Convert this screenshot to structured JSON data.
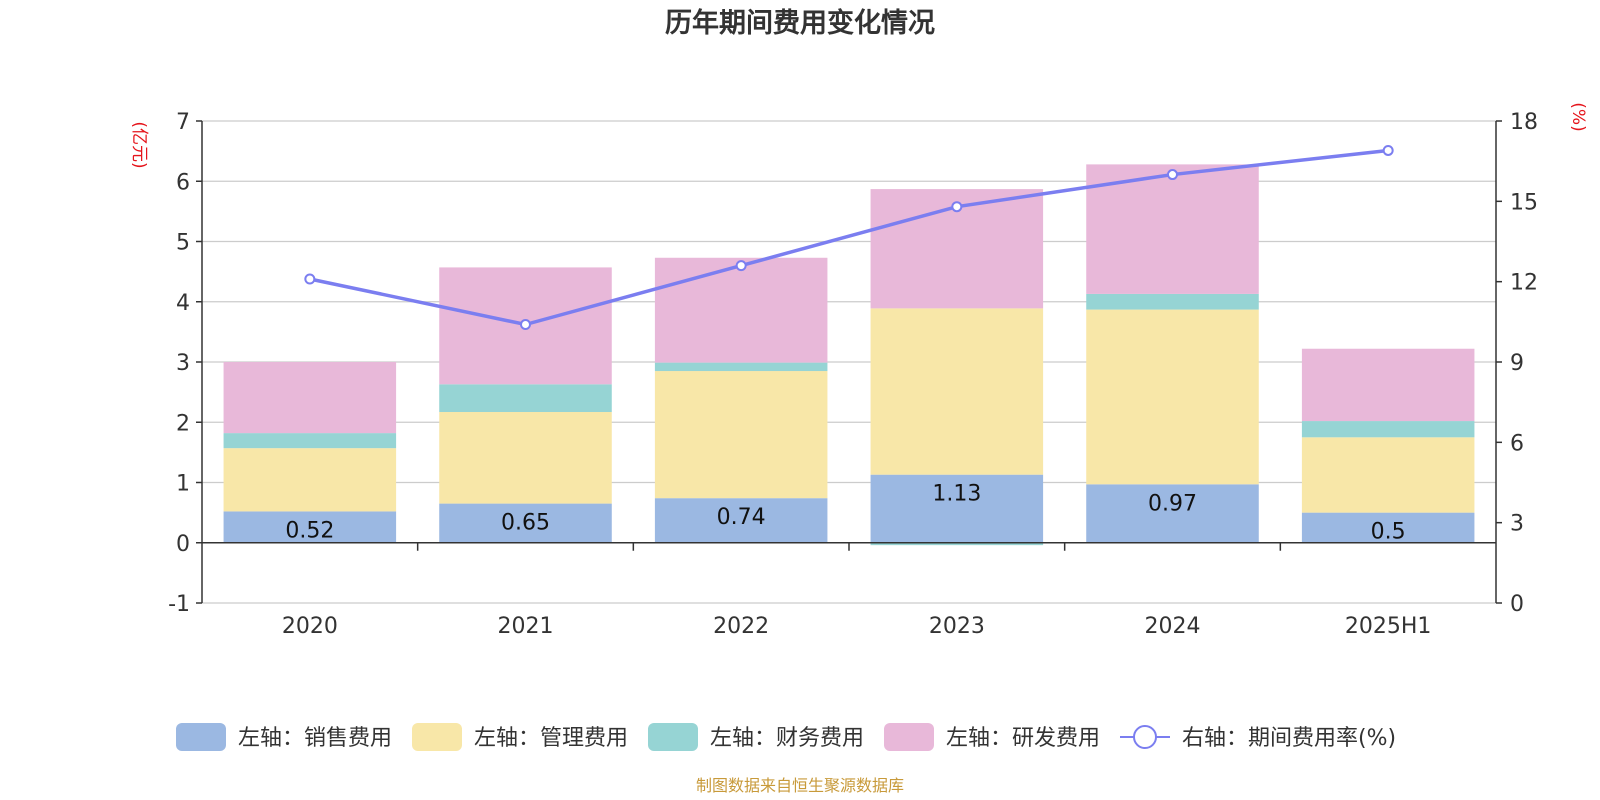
{
  "title": "历年期间费用变化情况",
  "source_note": "制图数据来自恒生聚源数据库",
  "chart_data": {
    "type": "bar",
    "stacked": true,
    "categories": [
      "2020",
      "2021",
      "2022",
      "2023",
      "2024",
      "2025H1"
    ],
    "left_axis": {
      "unit": "(亿元)",
      "ylim": [
        -1,
        7
      ],
      "ticks": [
        "-1",
        "0",
        "1",
        "2",
        "3",
        "4",
        "5",
        "6",
        "7"
      ]
    },
    "right_axis": {
      "unit": "(%)",
      "ylim": [
        0,
        18
      ],
      "ticks": [
        "0",
        "3",
        "6",
        "9",
        "12",
        "15",
        "18"
      ]
    },
    "grid": true,
    "legend_position": "bottom",
    "series": [
      {
        "name": "左轴：销售费用",
        "type": "bar",
        "axis": "left",
        "color": "#9bb8e2",
        "values": [
          0.52,
          0.65,
          0.74,
          1.13,
          0.97,
          0.5
        ],
        "labels": [
          "0.52",
          "0.65",
          "0.74",
          "1.13",
          "0.97",
          "0.5"
        ]
      },
      {
        "name": "左轴：管理费用",
        "type": "bar",
        "axis": "left",
        "color": "#f8e7a8",
        "values": [
          1.05,
          1.52,
          2.11,
          2.76,
          2.9,
          1.25
        ]
      },
      {
        "name": "左轴：财务费用",
        "type": "bar",
        "axis": "left",
        "color": "#96d4d4",
        "values": [
          0.25,
          0.46,
          0.14,
          -0.04,
          0.26,
          0.27
        ]
      },
      {
        "name": "左轴：研发费用",
        "type": "bar",
        "axis": "left",
        "color": "#e8b8d9",
        "values": [
          1.18,
          1.94,
          1.74,
          1.98,
          2.15,
          1.2
        ]
      },
      {
        "name": "右轴：期间费用率(%)",
        "type": "line",
        "axis": "right",
        "color": "#7b7ef0",
        "values": [
          12.1,
          10.4,
          12.6,
          14.8,
          16.0,
          16.9
        ]
      }
    ]
  }
}
